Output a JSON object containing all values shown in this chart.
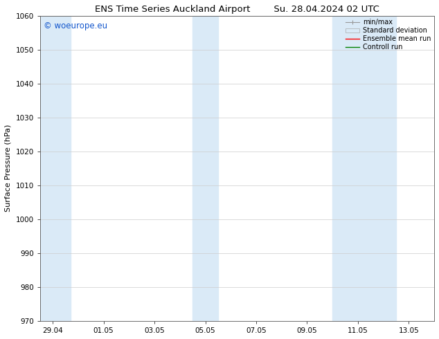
{
  "title_left": "ENS Time Series Auckland Airport",
  "title_right": "Su. 28.04.2024 02 UTC",
  "ylabel": "Surface Pressure (hPa)",
  "ylim": [
    970,
    1060
  ],
  "yticks": [
    970,
    980,
    990,
    1000,
    1010,
    1020,
    1030,
    1040,
    1050,
    1060
  ],
  "x_tick_labels": [
    "29.04",
    "01.05",
    "03.05",
    "05.05",
    "07.05",
    "09.05",
    "11.05",
    "13.05"
  ],
  "x_tick_positions": [
    0,
    2,
    4,
    6,
    8,
    10,
    12,
    14
  ],
  "xlim": [
    -0.5,
    15.0
  ],
  "shaded_bands": [
    {
      "x_start": -0.5,
      "x_end": 0.7
    },
    {
      "x_start": 5.5,
      "x_end": 6.5
    },
    {
      "x_start": 11.0,
      "x_end": 13.5
    }
  ],
  "shade_color": "#daeaf7",
  "watermark": "© woeurope.eu",
  "watermark_color": "#1155cc",
  "watermark_fontsize": 8.5,
  "background_color": "#ffffff",
  "grid_color": "#cccccc",
  "title_fontsize": 9.5,
  "axis_fontsize": 8,
  "tick_fontsize": 7.5,
  "legend_fontsize": 7
}
